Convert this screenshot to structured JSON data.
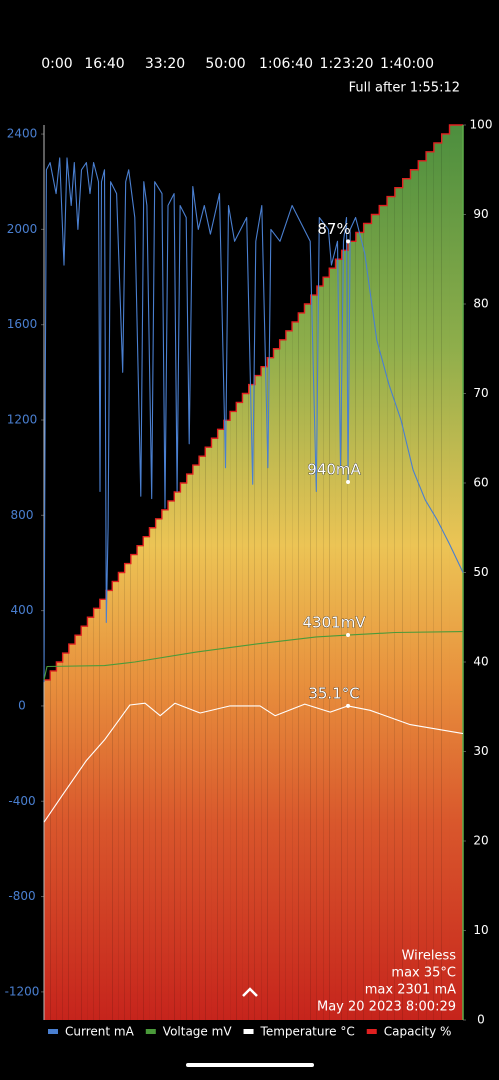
{
  "chart_data": {
    "type": "line",
    "xlim": [
      0,
      6925
    ],
    "xticks": [
      {
        "value": 0,
        "label": "0:00"
      },
      {
        "value": 1000,
        "label": "16:40"
      },
      {
        "value": 2000,
        "label": "33:20"
      },
      {
        "value": 3000,
        "label": "50:00"
      },
      {
        "value": 4000,
        "label": "1:06:40"
      },
      {
        "value": 5000,
        "label": "1:23:20"
      },
      {
        "value": 6000,
        "label": "1:40:00"
      }
    ],
    "ylim": [
      -1318,
      2438
    ],
    "yticks": [
      -1200,
      -800,
      -400,
      0,
      400,
      800,
      1200,
      1600,
      2000,
      2400
    ],
    "y2lim": [
      0,
      100
    ],
    "y2ticks": [
      0,
      10,
      20,
      30,
      40,
      50,
      60,
      70,
      80,
      90,
      100
    ],
    "note": "Full after 1:55:12",
    "info": [
      "Wireless",
      "max 35°C",
      "max 2301 mA",
      "May 20 2023 8:00:29"
    ],
    "series": [
      {
        "name": "Capacity %",
        "color": "#e02020",
        "axis": "y2",
        "step": true,
        "x": [
          0,
          103,
          205,
          308,
          410,
          513,
          615,
          718,
          820,
          923,
          1025,
          1128,
          1230,
          1333,
          1435,
          1538,
          1640,
          1743,
          1845,
          1948,
          2050,
          2153,
          2255,
          2358,
          2460,
          2563,
          2665,
          2768,
          2870,
          2973,
          3075,
          3178,
          3280,
          3383,
          3485,
          3588,
          3690,
          3793,
          3895,
          3998,
          4100,
          4203,
          4305,
          4408,
          4510,
          4613,
          4715,
          4818,
          4920,
          5023,
          5154,
          5283,
          5412,
          5541,
          5670,
          5799,
          5928,
          6057,
          6186,
          6315,
          6444,
          6573,
          6702
        ],
        "values": [
          38,
          39,
          40,
          41,
          42,
          43,
          44,
          45,
          46,
          47,
          48,
          49,
          50,
          51,
          52,
          53,
          54,
          55,
          56,
          57,
          58,
          59,
          60,
          61,
          62,
          63,
          64,
          65,
          66,
          67,
          68,
          69,
          70,
          71,
          72,
          73,
          74,
          75,
          76,
          77,
          78,
          79,
          80,
          81,
          82,
          83,
          84,
          85,
          86,
          87,
          88,
          89,
          90,
          91,
          92,
          93,
          94,
          95,
          96,
          97,
          98,
          99,
          100
        ],
        "marker": {
          "x": 5025,
          "value": 87,
          "label": "87%"
        }
      },
      {
        "name": "Current mA",
        "color": "#4a7fd0",
        "x": [
          0,
          20,
          40,
          100,
          200,
          260,
          330,
          380,
          450,
          500,
          560,
          620,
          700,
          760,
          820,
          900,
          925,
          950,
          1000,
          1030,
          1060,
          1100,
          1200,
          1300,
          1350,
          1400,
          1500,
          1600,
          1650,
          1700,
          1780,
          1830,
          1950,
          2000,
          2050,
          2150,
          2200,
          2250,
          2350,
          2400,
          2460,
          2550,
          2650,
          2750,
          2900,
          3000,
          3050,
          3150,
          3350,
          3450,
          3500,
          3600,
          3700,
          3750,
          3900,
          4100,
          4400,
          4500,
          4550,
          4700,
          4750,
          4850,
          4900,
          4950,
          5000,
          5025,
          5060,
          5150,
          5300,
          5500,
          5700,
          5900,
          6100,
          6300,
          6500,
          6700,
          6925
        ],
        "values": [
          100,
          1300,
          2250,
          2280,
          2150,
          2300,
          1850,
          2300,
          2100,
          2280,
          2000,
          2250,
          2280,
          2150,
          2280,
          2200,
          900,
          2200,
          2250,
          350,
          750,
          2200,
          2150,
          1400,
          2200,
          2250,
          2050,
          880,
          2200,
          2100,
          870,
          2200,
          2150,
          830,
          2100,
          2150,
          900,
          2100,
          2050,
          1100,
          2180,
          2000,
          2100,
          1980,
          2150,
          1000,
          2100,
          1950,
          2050,
          930,
          1950,
          2100,
          1000,
          2000,
          1950,
          2100,
          1950,
          900,
          2050,
          2000,
          1850,
          1950,
          1000,
          1950,
          2050,
          940,
          2000,
          2050,
          1900,
          1535,
          1350,
          1200,
          990,
          865,
          780,
          680,
          560
        ],
        "marker": {
          "x": 5025,
          "value": 940,
          "label": "940mA"
        }
      },
      {
        "name": "Voltage mV",
        "color": "#4a9a3a",
        "ylim": [
          0,
          10000
        ],
        "x": [
          0,
          50,
          1000,
          1500,
          2500,
          3500,
          4500,
          5025,
          5800,
          6925
        ],
        "values": [
          3800,
          3950,
          3960,
          4000,
          4110,
          4200,
          4280,
          4301,
          4330,
          4340
        ],
        "marker": {
          "x": 5025,
          "value": 4301,
          "label": "4301mV"
        }
      },
      {
        "name": "Temperature °C",
        "color": "#ffffff",
        "axis": "y2",
        "x": [
          0,
          300,
          700,
          1000,
          1420,
          1670,
          1920,
          2165,
          2580,
          3075,
          3570,
          3820,
          4310,
          4730,
          5025,
          5390,
          6050,
          6925
        ],
        "values": [
          22.1,
          25.1,
          29,
          31.3,
          35.2,
          35.4,
          34,
          35.4,
          34.3,
          35.1,
          35.1,
          34,
          35.3,
          34.4,
          35.1,
          34.6,
          33,
          32
        ],
        "marker": {
          "x": 5025,
          "value": 35.1,
          "label": "35.1°C"
        }
      }
    ]
  }
}
